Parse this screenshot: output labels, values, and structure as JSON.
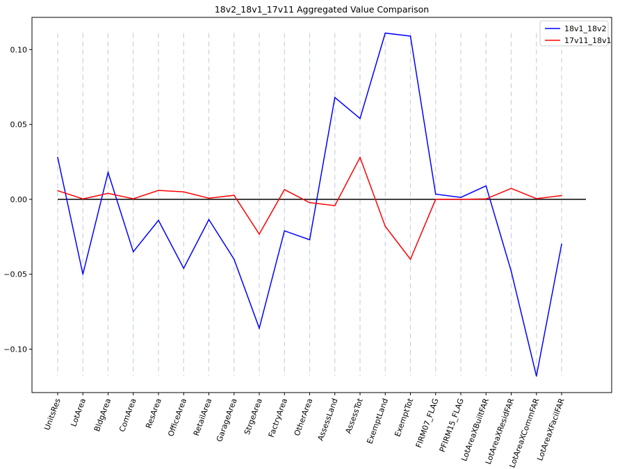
{
  "chart_data": {
    "type": "line",
    "title": "18v2_18v1_17v11 Aggregated Value Comparison",
    "xlabel": "",
    "ylabel": "",
    "categories": [
      "UnitsRes",
      "LotArea",
      "BldgArea",
      "ComArea",
      "ResArea",
      "OfficeArea",
      "RetailArea",
      "GarageArea",
      "StrgeArea",
      "FactryArea",
      "OtherArea",
      "AssessLand",
      "AssessTot",
      "ExemptLand",
      "ExemptTot",
      "FIRM07_FLAG",
      "PFIRM15_FLAG",
      "LotAreaXBuiltFAR",
      "LotAreaXResidFAR",
      "LotAreaXCommFAR",
      "LotAreaXFacilFAR"
    ],
    "series": [
      {
        "name": "18v1_18v2",
        "color": "#0000ff",
        "values": [
          0.028,
          -0.05,
          0.018,
          -0.035,
          -0.014,
          -0.046,
          -0.0135,
          -0.04,
          -0.086,
          -0.021,
          -0.027,
          0.068,
          0.054,
          0.111,
          0.109,
          0.0035,
          0.0013,
          0.009,
          -0.048,
          -0.118,
          -0.03
        ]
      },
      {
        "name": "17v11_18v1",
        "color": "#ff0000",
        "values": [
          0.0058,
          0.0003,
          0.004,
          0.0004,
          0.006,
          0.005,
          0.0008,
          0.0027,
          -0.0232,
          0.0065,
          -0.0022,
          -0.0042,
          0.028,
          -0.018,
          -0.04,
          0.0,
          0.0,
          0.0003,
          0.0073,
          0.0005,
          0.0025
        ]
      }
    ],
    "yticks": [
      -0.1,
      -0.05,
      0.0,
      0.05,
      0.1
    ],
    "ytick_labels": [
      "−0.10",
      "−0.05",
      "0.00",
      "0.05",
      "0.10"
    ],
    "ylim": [
      -0.129,
      0.1215
    ],
    "zero_line": 0,
    "grid": "vertical-dashed",
    "legend_position": "top-right"
  }
}
